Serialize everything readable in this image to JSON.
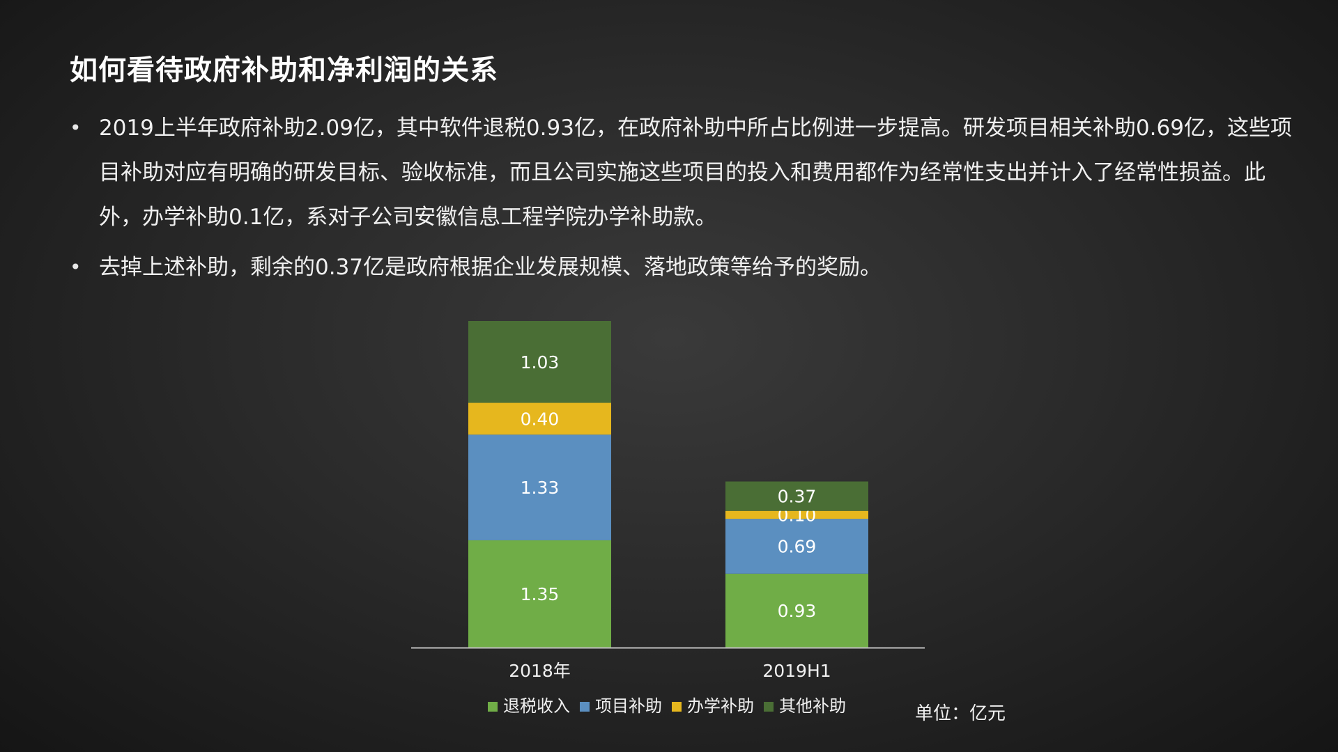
{
  "slide": {
    "title": "如何看待政府补助和净利润的关系",
    "bullets": [
      "2019上半年政府补助2.09亿，其中软件退税0.93亿，在政府补助中所占比例进一步提高。研发项目相关补助0.69亿，这些项目补助对应有明确的研发目标、验收标准，而且公司实施这些项目的投入和费用都作为经常性支出并计入了经常性损益。此外，办学补助0.1亿，系对子公司安徽信息工程学院办学补助款。",
      "去掉上述补助，剩余的0.37亿是政府根据企业发展规模、落地政策等给予的奖励。"
    ],
    "bullet_symbol": "•",
    "unit_label": "单位：亿元"
  },
  "chart_data": {
    "type": "bar",
    "stacked": true,
    "categories": [
      "2018年",
      "2019H1"
    ],
    "series": [
      {
        "name": "退税收入",
        "values": [
          1.35,
          0.93
        ],
        "color": "#70ad47"
      },
      {
        "name": "项目补助",
        "values": [
          1.33,
          0.69
        ],
        "color": "#5b8fc0"
      },
      {
        "name": "办学补助",
        "values": [
          0.4,
          0.1
        ],
        "color": "#e6b71e"
      },
      {
        "name": "其他补助",
        "values": [
          1.03,
          0.37
        ],
        "color": "#4a6e35"
      }
    ],
    "ylim": [
      0,
      4.11
    ],
    "grid": false,
    "legend_position": "bottom",
    "axis_color": "#bfbfbf",
    "label_color": "#ffffff"
  }
}
